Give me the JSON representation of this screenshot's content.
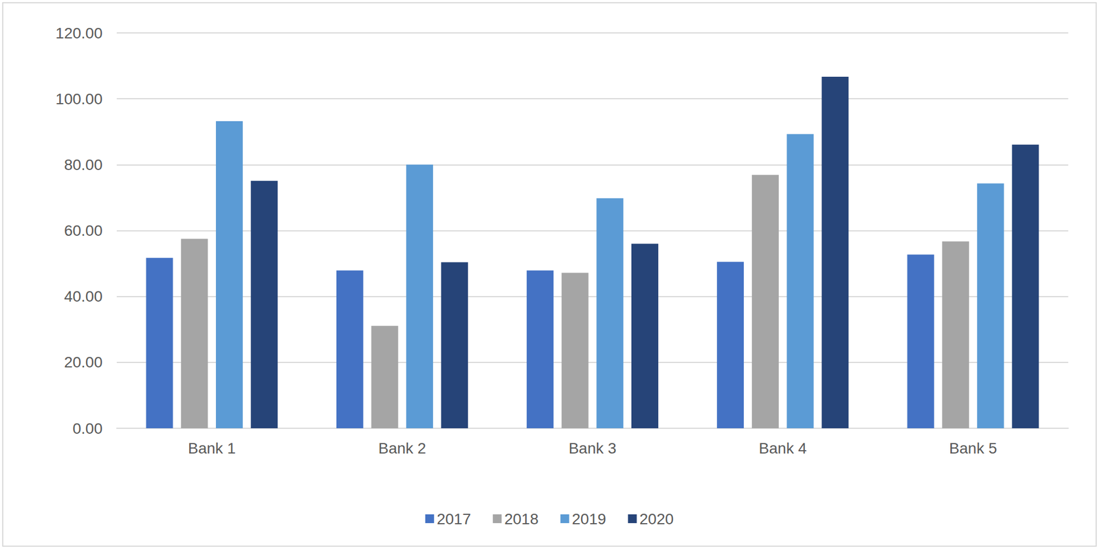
{
  "chart_data": {
    "type": "bar",
    "categories": [
      "Bank 1",
      "Bank 2",
      "Bank 3",
      "Bank 4",
      "Bank 5"
    ],
    "series": [
      {
        "name": "2017",
        "color": "#4472c4",
        "values": [
          51.7,
          47.9,
          47.9,
          50.5,
          52.7
        ]
      },
      {
        "name": "2018",
        "color": "#a5a5a5",
        "values": [
          57.5,
          31.1,
          47.2,
          76.9,
          56.7
        ]
      },
      {
        "name": "2019",
        "color": "#5b9bd5",
        "values": [
          93.2,
          80.0,
          69.8,
          89.3,
          74.3
        ]
      },
      {
        "name": "2020",
        "color": "#264478",
        "values": [
          75.1,
          50.4,
          56.0,
          106.7,
          86.1
        ]
      }
    ],
    "ylim": [
      0,
      120
    ],
    "yticks": [
      {
        "value": 0,
        "label": "0.00"
      },
      {
        "value": 20,
        "label": "20.00"
      },
      {
        "value": 40,
        "label": "40.00"
      },
      {
        "value": 60,
        "label": "60.00"
      },
      {
        "value": 80,
        "label": "80.00"
      },
      {
        "value": 100,
        "label": "100.00"
      },
      {
        "value": 120,
        "label": "120.00"
      }
    ],
    "grid": true,
    "legend": "bottom"
  }
}
